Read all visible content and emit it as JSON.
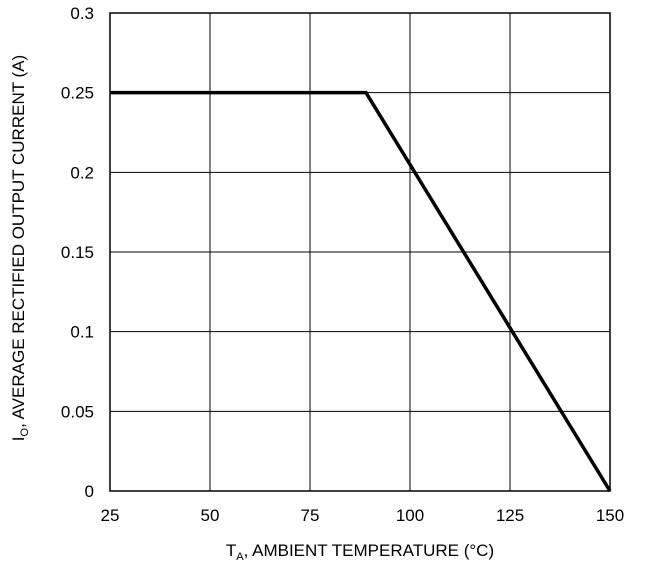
{
  "chart_data": {
    "type": "line",
    "x_axis": {
      "label_main": "T",
      "label_sub": "A",
      "label_rest": ", AMBIENT TEMPERATURE (°C)",
      "ticks": [
        25,
        50,
        75,
        100,
        125,
        150
      ],
      "tick_labels": [
        "25",
        "50",
        "75",
        "100",
        "125",
        "150"
      ],
      "range": [
        25,
        150
      ]
    },
    "y_axis": {
      "label_main": "I",
      "label_sub": "O",
      "label_rest": ", AVERAGE RECTIFIED OUTPUT CURRENT (A)",
      "ticks": [
        0,
        0.05,
        0.1,
        0.15,
        0.2,
        0.25,
        0.3
      ],
      "tick_labels": [
        "0",
        "0.05",
        "0.1",
        "0.15",
        "0.2",
        "0.25",
        "0.3"
      ],
      "range": [
        0,
        0.3
      ]
    },
    "grid": true,
    "series": [
      {
        "x": [
          25,
          89,
          150
        ],
        "y": [
          0.25,
          0.25,
          0
        ],
        "color": "#000000"
      }
    ]
  }
}
